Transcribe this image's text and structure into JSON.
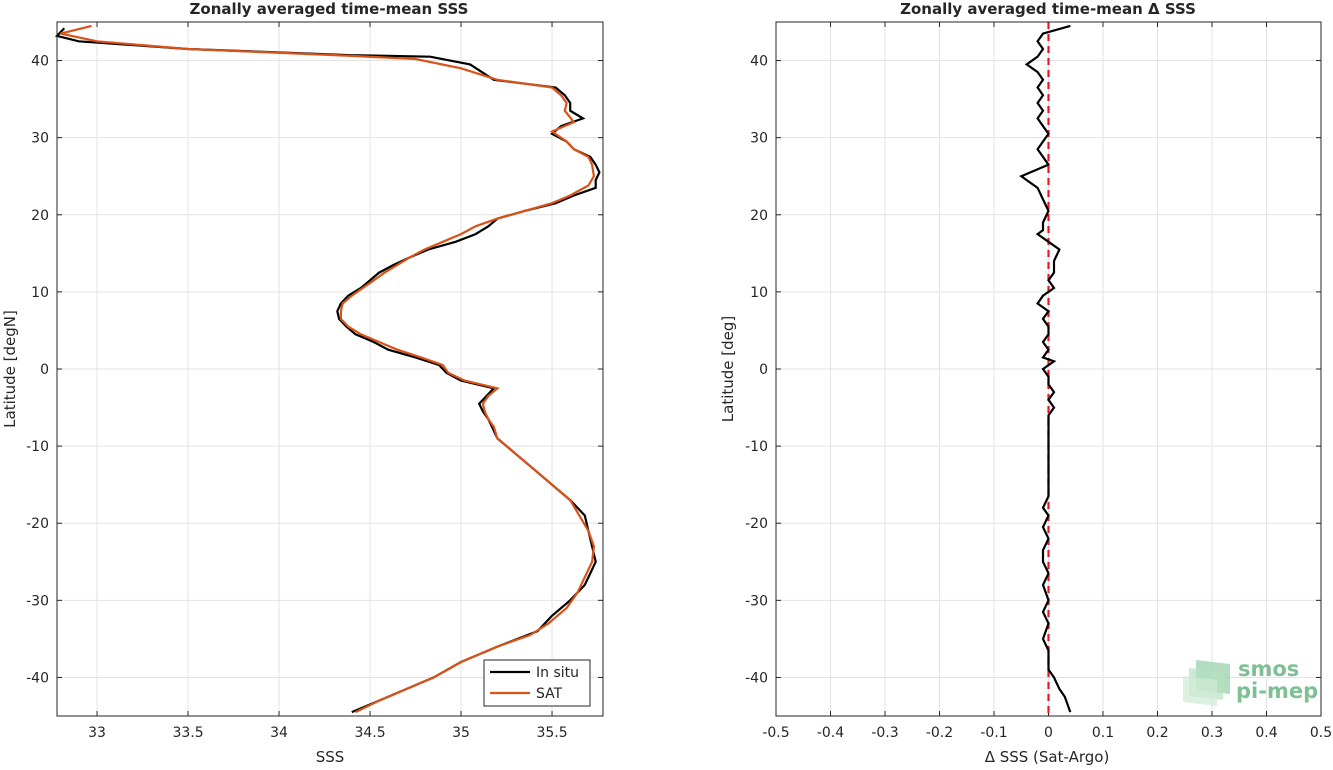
{
  "chart_data": [
    {
      "type": "line",
      "title": "Zonally averaged time-mean SSS",
      "xlabel": "SSS",
      "ylabel": "Latitude [degN]",
      "xlim": [
        32.78,
        35.78
      ],
      "ylim": [
        -45,
        45
      ],
      "xticks": [
        "33",
        "33.5",
        "34",
        "34.5",
        "35",
        "35.5"
      ],
      "yticks": [
        "40",
        "30",
        "20",
        "10",
        "0",
        "-10",
        "-20",
        "-30",
        "-40"
      ],
      "grid": true,
      "legend": {
        "placement": "bottom-right"
      },
      "colors": {
        "in_situ": "#000000",
        "sat": "#d95319"
      },
      "series": [
        {
          "name": "In situ",
          "points": [
            [
              32.82,
              44.2
            ],
            [
              32.78,
              43.2
            ],
            [
              32.9,
              42.5
            ],
            [
              33.5,
              41.5
            ],
            [
              34.4,
              40.7
            ],
            [
              34.83,
              40.5
            ],
            [
              35.05,
              39.5
            ],
            [
              35.18,
              37.5
            ],
            [
              35.52,
              36.5
            ],
            [
              35.57,
              35.5
            ],
            [
              35.6,
              34.5
            ],
            [
              35.6,
              33.5
            ],
            [
              35.67,
              32.5
            ],
            [
              35.55,
              31.5
            ],
            [
              35.5,
              30.5
            ],
            [
              35.58,
              29.5
            ],
            [
              35.62,
              28.5
            ],
            [
              35.71,
              27.5
            ],
            [
              35.74,
              26.5
            ],
            [
              35.76,
              25.5
            ],
            [
              35.74,
              24.5
            ],
            [
              35.74,
              23.5
            ],
            [
              35.62,
              22.5
            ],
            [
              35.52,
              21.5
            ],
            [
              35.35,
              20.5
            ],
            [
              35.2,
              19.5
            ],
            [
              35.15,
              18.5
            ],
            [
              35.08,
              17.5
            ],
            [
              34.97,
              16.5
            ],
            [
              34.82,
              15.5
            ],
            [
              34.72,
              14.5
            ],
            [
              34.63,
              13.5
            ],
            [
              34.55,
              12.5
            ],
            [
              34.5,
              11.5
            ],
            [
              34.45,
              10.5
            ],
            [
              34.38,
              9.5
            ],
            [
              34.34,
              8.5
            ],
            [
              34.32,
              7.5
            ],
            [
              34.33,
              6.5
            ],
            [
              34.37,
              5.5
            ],
            [
              34.42,
              4.5
            ],
            [
              34.52,
              3.5
            ],
            [
              34.6,
              2.5
            ],
            [
              34.75,
              1.5
            ],
            [
              34.88,
              0.5
            ],
            [
              34.92,
              -0.5
            ],
            [
              35.0,
              -1.5
            ],
            [
              35.18,
              -2.5
            ],
            [
              35.14,
              -3.5
            ],
            [
              35.1,
              -4.5
            ],
            [
              35.12,
              -5.5
            ],
            [
              35.15,
              -6.5
            ],
            [
              35.17,
              -7.5
            ],
            [
              35.2,
              -9.0
            ],
            [
              35.3,
              -11.0
            ],
            [
              35.4,
              -13.0
            ],
            [
              35.5,
              -15.0
            ],
            [
              35.6,
              -17.0
            ],
            [
              35.68,
              -19.0
            ],
            [
              35.7,
              -21.0
            ],
            [
              35.72,
              -23.0
            ],
            [
              35.74,
              -25.0
            ],
            [
              35.72,
              -26.0
            ],
            [
              35.68,
              -28.0
            ],
            [
              35.6,
              -30.0
            ],
            [
              35.5,
              -32.0
            ],
            [
              35.42,
              -34.0
            ],
            [
              35.2,
              -36.0
            ],
            [
              35.0,
              -38.0
            ],
            [
              34.85,
              -40.0
            ],
            [
              34.7,
              -41.5
            ],
            [
              34.55,
              -43.0
            ],
            [
              34.4,
              -44.5
            ]
          ]
        },
        {
          "name": "SAT",
          "points": [
            [
              32.97,
              44.5
            ],
            [
              32.8,
              43.5
            ],
            [
              33.0,
              42.5
            ],
            [
              33.5,
              41.5
            ],
            [
              34.4,
              40.6
            ],
            [
              34.75,
              40.2
            ],
            [
              35.0,
              39.0
            ],
            [
              35.2,
              37.5
            ],
            [
              35.5,
              36.5
            ],
            [
              35.55,
              35.5
            ],
            [
              35.58,
              34.5
            ],
            [
              35.57,
              33.5
            ],
            [
              35.62,
              32.0
            ],
            [
              35.5,
              30.8
            ],
            [
              35.58,
              29.5
            ],
            [
              35.62,
              28.5
            ],
            [
              35.7,
              27.5
            ],
            [
              35.72,
              26.5
            ],
            [
              35.73,
              25.0
            ],
            [
              35.7,
              23.8
            ],
            [
              35.6,
              22.5
            ],
            [
              35.5,
              21.5
            ],
            [
              35.35,
              20.5
            ],
            [
              35.2,
              19.5
            ],
            [
              35.08,
              18.5
            ],
            [
              35.0,
              17.5
            ],
            [
              34.9,
              16.5
            ],
            [
              34.8,
              15.5
            ],
            [
              34.72,
              14.5
            ],
            [
              34.65,
              13.5
            ],
            [
              34.58,
              12.5
            ],
            [
              34.52,
              11.5
            ],
            [
              34.46,
              10.5
            ],
            [
              34.4,
              9.5
            ],
            [
              34.35,
              8.5
            ],
            [
              34.34,
              7.5
            ],
            [
              34.34,
              6.5
            ],
            [
              34.38,
              5.5
            ],
            [
              34.45,
              4.5
            ],
            [
              34.55,
              3.5
            ],
            [
              34.65,
              2.5
            ],
            [
              34.78,
              1.5
            ],
            [
              34.9,
              0.5
            ],
            [
              34.93,
              -0.5
            ],
            [
              35.02,
              -1.5
            ],
            [
              35.2,
              -2.5
            ],
            [
              35.15,
              -3.5
            ],
            [
              35.12,
              -4.5
            ],
            [
              35.13,
              -5.5
            ],
            [
              35.15,
              -6.5
            ],
            [
              35.18,
              -7.5
            ],
            [
              35.2,
              -9.0
            ],
            [
              35.3,
              -11.0
            ],
            [
              35.4,
              -13.0
            ],
            [
              35.5,
              -15.0
            ],
            [
              35.6,
              -17.0
            ],
            [
              35.65,
              -19.0
            ],
            [
              35.7,
              -21.0
            ],
            [
              35.73,
              -23.0
            ],
            [
              35.72,
              -25.0
            ],
            [
              35.68,
              -27.0
            ],
            [
              35.64,
              -29.0
            ],
            [
              35.58,
              -31.0
            ],
            [
              35.48,
              -33.0
            ],
            [
              35.38,
              -34.5
            ],
            [
              35.2,
              -36.0
            ],
            [
              35.0,
              -38.0
            ],
            [
              34.85,
              -40.0
            ],
            [
              34.7,
              -41.5
            ],
            [
              34.55,
              -43.0
            ],
            [
              34.42,
              -44.5
            ]
          ]
        }
      ]
    },
    {
      "type": "line",
      "title": "Zonally averaged time-mean Δ SSS",
      "xlabel": "Δ SSS (Sat-Argo)",
      "ylabel": "Latitude [deg]",
      "xlim": [
        -0.5,
        0.5
      ],
      "ylim": [
        -45,
        45
      ],
      "xticks": [
        "-0.5",
        "-0.4",
        "-0.3",
        "-0.2",
        "-0.1",
        "0",
        "0.1",
        "0.2",
        "0.3",
        "0.4",
        "0.5"
      ],
      "yticks": [
        "40",
        "30",
        "20",
        "10",
        "0",
        "-10",
        "-20",
        "-30",
        "-40"
      ],
      "grid": true,
      "reference_line": {
        "x": 0,
        "style": "dashed",
        "color": "#e41a1c"
      },
      "colors": {
        "delta": "#000000"
      },
      "series": [
        {
          "name": "",
          "points": [
            [
              0.04,
              44.5
            ],
            [
              -0.01,
              43.5
            ],
            [
              -0.02,
              42.5
            ],
            [
              -0.01,
              41.5
            ],
            [
              -0.02,
              40.5
            ],
            [
              -0.04,
              39.5
            ],
            [
              -0.02,
              38.5
            ],
            [
              -0.01,
              37.5
            ],
            [
              -0.02,
              36.5
            ],
            [
              -0.01,
              35.5
            ],
            [
              -0.02,
              34.5
            ],
            [
              -0.01,
              33.5
            ],
            [
              -0.02,
              32.5
            ],
            [
              -0.01,
              31.5
            ],
            [
              0.0,
              30.5
            ],
            [
              -0.01,
              29.5
            ],
            [
              -0.02,
              28.5
            ],
            [
              -0.01,
              27.5
            ],
            [
              0.0,
              26.5
            ],
            [
              -0.05,
              25.0
            ],
            [
              -0.04,
              24.5
            ],
            [
              -0.02,
              23.5
            ],
            [
              -0.01,
              22.0
            ],
            [
              0.0,
              20.5
            ],
            [
              -0.01,
              19.0
            ],
            [
              -0.01,
              18.0
            ],
            [
              -0.02,
              17.5
            ],
            [
              0.0,
              16.5
            ],
            [
              0.02,
              15.5
            ],
            [
              0.01,
              14.0
            ],
            [
              0.01,
              12.5
            ],
            [
              0.0,
              11.5
            ],
            [
              0.01,
              10.5
            ],
            [
              -0.01,
              9.5
            ],
            [
              -0.02,
              8.5
            ],
            [
              0.0,
              7.5
            ],
            [
              -0.01,
              6.5
            ],
            [
              0.0,
              5.5
            ],
            [
              0.0,
              4.5
            ],
            [
              -0.01,
              3.5
            ],
            [
              0.0,
              2.5
            ],
            [
              -0.01,
              1.5
            ],
            [
              0.01,
              1.0
            ],
            [
              -0.01,
              0.0
            ],
            [
              0.0,
              -1.0
            ],
            [
              0.0,
              -2.0
            ],
            [
              0.01,
              -3.0
            ],
            [
              0.0,
              -4.0
            ],
            [
              0.01,
              -5.0
            ],
            [
              0.0,
              -6.0
            ],
            [
              0.0,
              -7.0
            ],
            [
              0.0,
              -8.0
            ],
            [
              0.0,
              -10.0
            ],
            [
              0.0,
              -12.0
            ],
            [
              0.0,
              -14.0
            ],
            [
              0.0,
              -15.5
            ],
            [
              0.0,
              -16.5
            ],
            [
              -0.01,
              -18.0
            ],
            [
              0.0,
              -19.0
            ],
            [
              -0.01,
              -20.5
            ],
            [
              0.0,
              -22.0
            ],
            [
              -0.01,
              -23.5
            ],
            [
              -0.01,
              -25.0
            ],
            [
              0.0,
              -26.5
            ],
            [
              -0.01,
              -28.0
            ],
            [
              0.0,
              -30.0
            ],
            [
              -0.01,
              -31.5
            ],
            [
              0.0,
              -33.0
            ],
            [
              -0.01,
              -35.0
            ],
            [
              0.0,
              -36.5
            ],
            [
              0.0,
              -38.0
            ],
            [
              0.0,
              -39.0
            ],
            [
              0.01,
              -40.0
            ],
            [
              0.02,
              -41.5
            ],
            [
              0.03,
              -42.5
            ],
            [
              0.04,
              -44.5
            ]
          ]
        }
      ]
    }
  ],
  "logo": {
    "line1": "smos",
    "line2": "pi-mep"
  }
}
